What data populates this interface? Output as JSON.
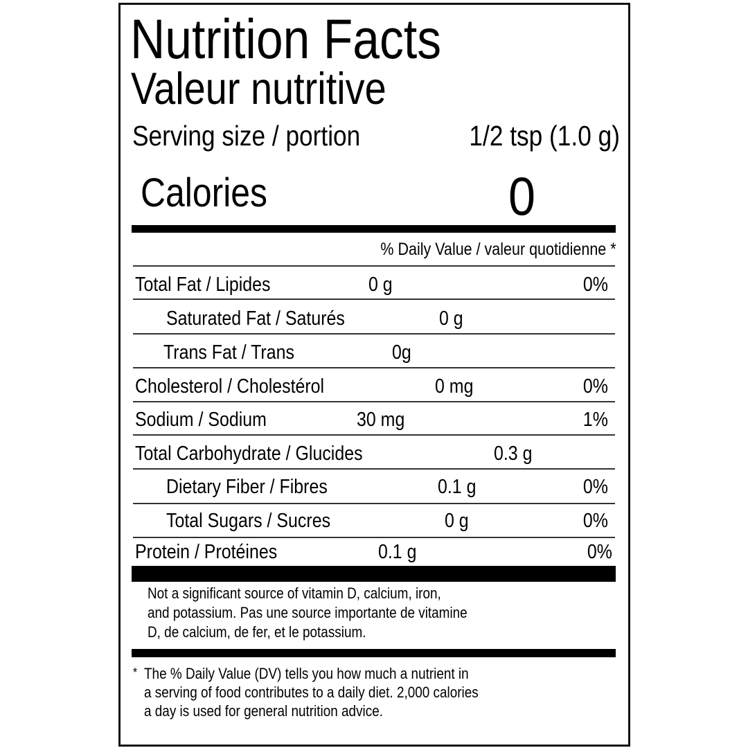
{
  "title": "Nutrition Facts",
  "subtitle": "Valeur nutritive",
  "serving": {
    "label": "Serving size / portion",
    "value": "1/2 tsp (1.0 g)"
  },
  "calories": {
    "label": "Calories",
    "value": "0"
  },
  "daily_value_header": "% Daily Value / valeur quotidienne *",
  "nutrients": [
    {
      "name": "Total Fat / Lipides",
      "amount": "0 g",
      "dv": "0%"
    },
    {
      "name": "Saturated Fat / Saturés",
      "amount": "0 g",
      "dv": ""
    },
    {
      "name": "Trans Fat  /  Trans",
      "amount": "0g",
      "dv": ""
    },
    {
      "name": "Cholesterol / Cholestérol",
      "amount": "0 mg",
      "dv": "0%"
    },
    {
      "name": "Sodium / Sodium",
      "amount": "30 mg",
      "dv": "1%"
    },
    {
      "name": "Total Carbohydrate / Glucides",
      "amount": "0.3 g",
      "dv": ""
    },
    {
      "name": "Dietary Fiber  / Fibres",
      "amount": "0.1 g",
      "dv": "0%"
    },
    {
      "name": "Total Sugars / Sucres",
      "amount": "0 g",
      "dv": "0%"
    },
    {
      "name": "Protein / Protéines",
      "amount": "0.1 g",
      "dv": "0%"
    }
  ],
  "vitamin_note": [
    "Not a significant source of vitamin D, calcium, iron,",
    "and potassium. Pas une source importante de vitamine",
    "D, de calcium, de fer, et le potassium."
  ],
  "footnote": {
    "marker": "*",
    "lines": [
      "The % Daily Value (DV) tells you how much a nutrient in",
      "a serving of food contributes to a daily diet. 2,000 calories",
      "a day is used for general nutrition advice."
    ]
  }
}
